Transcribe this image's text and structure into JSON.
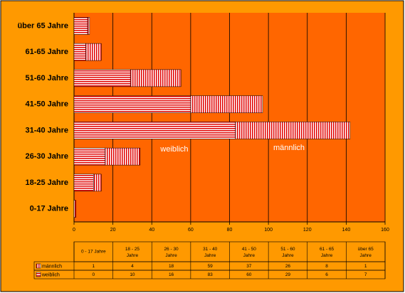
{
  "chart_data": {
    "type": "stacked-bar-horizontal",
    "categories": [
      "0-17 Jahre",
      "18-25 Jahre",
      "26-30 Jahre",
      "31-40 Jahre",
      "41-50 Jahre",
      "51-60 Jahre",
      "61-65 Jahre",
      "über 65 Jahre"
    ],
    "table_headers": [
      "0 - 17 Jahre",
      "18 - 25 Jahre",
      "26 - 30 Jahre",
      "31 - 40 Jahre",
      "41 - 50 Jahre",
      "51 - 60 Jahre",
      "61 - 65 Jahre",
      "über 65 Jahre"
    ],
    "series": [
      {
        "name": "weiblich",
        "color": "#e00000",
        "hatch": "horizontal",
        "values": [
          0,
          10,
          16,
          83,
          60,
          29,
          6,
          7
        ]
      },
      {
        "name": "männlich",
        "color": "#e00000",
        "hatch": "vertical",
        "values": [
          1,
          4,
          18,
          59,
          37,
          26,
          8,
          1
        ]
      }
    ],
    "annotations": [
      "weiblich",
      "männlich"
    ],
    "xlim": [
      0,
      160
    ],
    "xticks": [
      0,
      20,
      40,
      60,
      80,
      100,
      120,
      140,
      160
    ],
    "grid": true,
    "background_color": "#ff9900",
    "plot_color": "#ff6600"
  }
}
